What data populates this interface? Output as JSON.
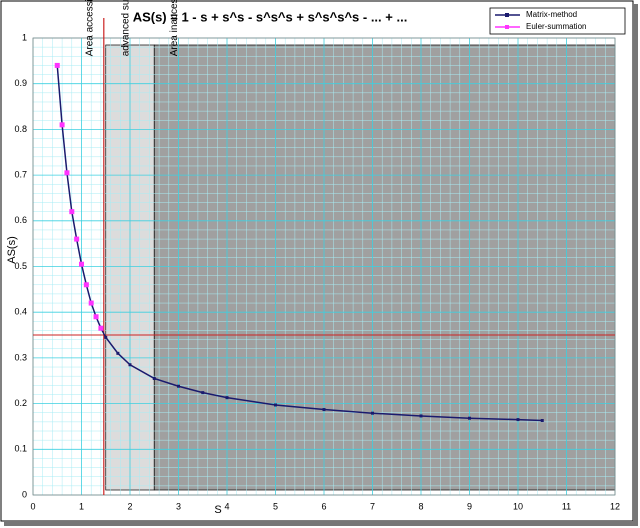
{
  "chart_data": {
    "type": "line",
    "title": "AS(s) = 1 - s + s^s - s^s^s + s^s^s^s - ... + ...",
    "x_label": "S",
    "y_label": "AS(s)",
    "xlim": [
      0,
      12
    ],
    "ylim": [
      0,
      1
    ],
    "xticks": [
      0,
      1,
      2,
      3,
      4,
      5,
      6,
      7,
      8,
      9,
      10,
      11,
      12
    ],
    "yticks": [
      0,
      0.1,
      0.2,
      0.3,
      0.4,
      0.5,
      0.6,
      0.7,
      0.8,
      0.9,
      1
    ],
    "grid": true,
    "legend": "top-right",
    "reference_lines": {
      "x": 1.46,
      "y": 0.35,
      "color": "#cc2222"
    },
    "left_label": "Area accessible for conventional summation",
    "regions": [
      {
        "xlim": [
          1.5,
          2.5
        ],
        "color": "#dcdcdc",
        "label": "advanced summation techniques required"
      },
      {
        "xlim": [
          2.5,
          12
        ],
        "color": "#a0a0a0",
        "label": "Area inaccessible by conventional summation"
      }
    ],
    "series": [
      {
        "name": "Matrix-method",
        "color": "#1a1a6e",
        "x": [
          0.5,
          0.6,
          0.7,
          0.8,
          0.9,
          1.0,
          1.1,
          1.2,
          1.3,
          1.4,
          1.5,
          1.75,
          2.0,
          2.5,
          3.0,
          3.5,
          4.0,
          5.0,
          6.0,
          7.0,
          8.0,
          9.0,
          10.0,
          10.5
        ],
        "values": [
          0.94,
          0.81,
          0.705,
          0.62,
          0.56,
          0.505,
          0.46,
          0.42,
          0.39,
          0.365,
          0.345,
          0.31,
          0.285,
          0.255,
          0.238,
          0.224,
          0.213,
          0.197,
          0.187,
          0.179,
          0.173,
          0.168,
          0.165,
          0.163
        ]
      },
      {
        "name": "Euler-summation",
        "color": "#ff33ff",
        "x": [
          0.5,
          0.6,
          0.7,
          0.8,
          0.9,
          1.0,
          1.1,
          1.2,
          1.3,
          1.4
        ],
        "values": [
          0.94,
          0.81,
          0.705,
          0.62,
          0.56,
          0.505,
          0.46,
          0.42,
          0.39,
          0.365
        ]
      }
    ]
  }
}
